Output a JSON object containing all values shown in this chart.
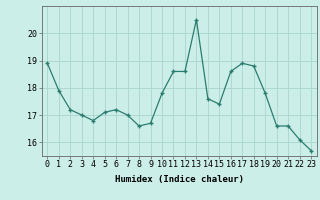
{
  "x": [
    0,
    1,
    2,
    3,
    4,
    5,
    6,
    7,
    8,
    9,
    10,
    11,
    12,
    13,
    14,
    15,
    16,
    17,
    18,
    19,
    20,
    21,
    22,
    23
  ],
  "y": [
    18.9,
    17.9,
    17.2,
    17.0,
    16.8,
    17.1,
    17.2,
    17.0,
    16.6,
    16.7,
    17.8,
    18.6,
    18.6,
    20.5,
    17.6,
    17.4,
    18.6,
    18.9,
    18.8,
    17.8,
    16.6,
    16.6,
    16.1,
    15.7
  ],
  "xlabel": "Humidex (Indice chaleur)",
  "ylim": [
    15.5,
    21.0
  ],
  "xlim": [
    -0.5,
    23.5
  ],
  "yticks": [
    16,
    17,
    18,
    19,
    20
  ],
  "xticks": [
    0,
    1,
    2,
    3,
    4,
    5,
    6,
    7,
    8,
    9,
    10,
    11,
    12,
    13,
    14,
    15,
    16,
    17,
    18,
    19,
    20,
    21,
    22,
    23
  ],
  "line_color": "#2a7d6e",
  "marker_color": "#2a7d6e",
  "bg_color": "#cceee8",
  "grid_color": "#aad4ce",
  "axis_color": "#666666",
  "label_fontsize": 6.5,
  "tick_fontsize": 6.0
}
